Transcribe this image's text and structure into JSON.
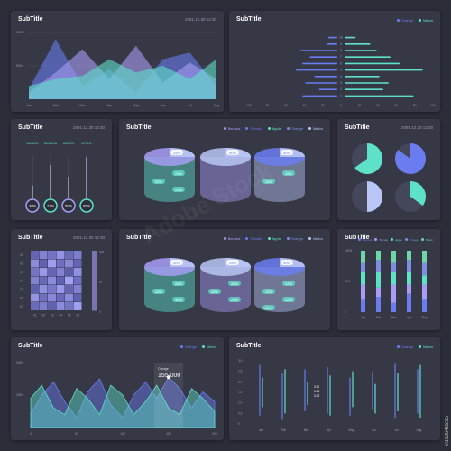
{
  "colors": {
    "bg": "#2a2c37",
    "card": "#363845",
    "teal": "#5ee1c9",
    "blue": "#6a7cf0",
    "purple": "#a79df5",
    "lightblue": "#b9c6f5",
    "grid": "#4a4d5c",
    "muted": "#9a9db0"
  },
  "panels": {
    "p1": {
      "title": "SubTitle",
      "date": "2091.12.30 12:30"
    },
    "p2": {
      "title": "SubTitle",
      "legend": [
        "Orange",
        "Melon"
      ]
    },
    "p3": {
      "title": "SubTitle",
      "date": "2091.12.30 12:30"
    },
    "p4": {
      "title": "SubTitle",
      "legend": [
        "Banana",
        "Tomato",
        "Apple",
        "Orange",
        "Melon"
      ]
    },
    "p5": {
      "title": "SubTitle",
      "date": "2091.12.30 12:30"
    },
    "p6": {
      "title": "SubTitle",
      "date": "2091.12.30 12:30"
    },
    "p7": {
      "title": "SubTitle",
      "legend": [
        "Banana",
        "Tomato",
        "Apple",
        "Orange",
        "Melon"
      ]
    },
    "p8": {
      "title": "SubTitle",
      "legend": [
        "Banana",
        "Tomato",
        "Apple",
        "Orange",
        "Melon"
      ]
    },
    "p9": {
      "title": "SubTitle",
      "legend": [
        "Orange",
        "Melon"
      ]
    },
    "p10": {
      "title": "SubTitle",
      "legend": [
        "Orange",
        "Melon"
      ]
    }
  },
  "chart_data": [
    {
      "type": "area",
      "title": "SubTitle",
      "categories": [
        "Jan",
        "Feb",
        "Mar",
        "Apr",
        "May",
        "Jun",
        "Jul",
        "Aug"
      ],
      "ytick_labels": [
        "100%",
        "50%"
      ],
      "ylim": [
        0,
        100
      ],
      "series": [
        {
          "color": "#6a7cf0",
          "values": [
            15,
            90,
            20,
            45,
            10,
            60,
            70,
            20
          ]
        },
        {
          "color": "#a79df5",
          "values": [
            10,
            40,
            75,
            30,
            80,
            25,
            55,
            30
          ]
        },
        {
          "color": "#5ee1c9",
          "values": [
            20,
            30,
            35,
            60,
            40,
            50,
            30,
            60
          ]
        }
      ]
    },
    {
      "type": "bar",
      "orientation": "horizontal",
      "title": "SubTitle",
      "categories": [
        "10",
        "9",
        "8",
        "7",
        "6",
        "5",
        "4",
        "3",
        "2",
        "1"
      ],
      "xtick_labels": [
        "100",
        "80",
        "60",
        "40",
        "20",
        "0",
        "20",
        "40",
        "60",
        "80",
        "100"
      ],
      "xlim": [
        -100,
        100
      ],
      "series": [
        {
          "name": "Orange",
          "values": [
            -10,
            -12,
            -40,
            -30,
            -38,
            -45,
            -25,
            -35,
            -20,
            -38
          ]
        },
        {
          "name": "Melon",
          "values": [
            12,
            28,
            35,
            50,
            60,
            85,
            38,
            48,
            42,
            75
          ]
        }
      ]
    },
    {
      "type": "bar",
      "title": "SubTitle",
      "categories": [
        "MANGO",
        "BANANA",
        "MELON",
        "APPLE"
      ],
      "values": [
        30,
        77,
        50,
        95
      ],
      "value_labels": [
        "30%",
        "77%",
        "50%",
        "95%"
      ],
      "ylim": [
        0,
        100
      ]
    },
    {
      "type": "pie",
      "title": "SubTitle",
      "legend": [
        "Banana",
        "Tomato",
        "Apple",
        "Orange",
        "Melon"
      ],
      "cylinders": [
        {
          "labels": [
            "25%",
            "25%",
            "25%",
            "25%"
          ]
        },
        {
          "labels": [
            "50%"
          ]
        },
        {
          "labels": [
            "50%",
            "25%",
            "25%"
          ]
        }
      ]
    },
    {
      "type": "pie",
      "title": "SubTitle",
      "pies": [
        {
          "fraction": 0.65,
          "color": "#5ee1c9"
        },
        {
          "fraction": 0.85,
          "color": "#6a7cf0"
        },
        {
          "fraction": 0.5,
          "color": "#b9c6f5"
        },
        {
          "fraction": 0.35,
          "color": "#5ee1c9"
        }
      ]
    },
    {
      "type": "heatmap",
      "title": "SubTitle",
      "rows": [
        "01",
        "02",
        "03",
        "04",
        "05",
        "06",
        "07"
      ],
      "cols": [
        "01",
        "02",
        "03",
        "04",
        "05",
        "06"
      ],
      "colorbar_labels": [
        "100",
        "50",
        "0"
      ],
      "values": [
        [
          30,
          60,
          45,
          80,
          35,
          55
        ],
        [
          70,
          25,
          90,
          40,
          65,
          30
        ],
        [
          45,
          85,
          30,
          60,
          20,
          75
        ],
        [
          60,
          35,
          70,
          25,
          95,
          40
        ],
        [
          25,
          75,
          50,
          85,
          30,
          60
        ],
        [
          80,
          40,
          65,
          35,
          70,
          25
        ],
        [
          35,
          55,
          25,
          70,
          45,
          90
        ]
      ]
    },
    {
      "type": "pie",
      "title": "SubTitle",
      "legend": [
        "Banana",
        "Tomato",
        "Apple",
        "Orange",
        "Melon"
      ],
      "cylinders": [
        {
          "labels": [
            "40%",
            "25%",
            "25%",
            "35%"
          ]
        },
        {
          "labels": [
            "25%",
            "25%",
            "25%",
            "25%"
          ]
        },
        {
          "labels": [
            "40%",
            "12%",
            "12%",
            "12%",
            "25%"
          ]
        }
      ]
    },
    {
      "type": "bar",
      "stacked": true,
      "title": "SubTitle",
      "legend": [
        "Banana",
        "Tomato",
        "Apple",
        "Orange",
        "Melon"
      ],
      "categories": [
        "Jan",
        "Feb",
        "Mar",
        "Apr",
        "May"
      ],
      "ytick_labels": [
        "100%",
        "50%",
        "0"
      ],
      "ylim": [
        0,
        100
      ],
      "series": [
        {
          "name": "Banana",
          "color": "#6a7cf0",
          "values": [
            20,
            25,
            15,
            30,
            20
          ]
        },
        {
          "name": "Tomato",
          "color": "#a79df5",
          "values": [
            25,
            15,
            30,
            15,
            25
          ]
        },
        {
          "name": "Apple",
          "color": "#5ee1c9",
          "values": [
            20,
            25,
            20,
            20,
            15
          ]
        },
        {
          "name": "Orange",
          "color": "#7b8ee0",
          "values": [
            15,
            20,
            15,
            20,
            20
          ]
        },
        {
          "name": "Melon",
          "color": "#6fd6a8",
          "values": [
            20,
            15,
            20,
            15,
            20
          ]
        }
      ]
    },
    {
      "type": "area",
      "title": "SubTitle",
      "legend": [
        "Orange",
        "Melon"
      ],
      "xtick_labels": [
        "0",
        "50",
        "100",
        "150",
        "200"
      ],
      "xlim": [
        0,
        200
      ],
      "ytick_labels": [
        "200K",
        "100K"
      ],
      "ylim": [
        0,
        200000
      ],
      "callout": {
        "label": "Orange",
        "value": "155,000",
        "x": 150
      },
      "series": [
        {
          "name": "Orange",
          "x": [
            0,
            12,
            25,
            37,
            50,
            62,
            75,
            87,
            100,
            112,
            125,
            137,
            150,
            162,
            175,
            187,
            200
          ],
          "values": [
            40000,
            100000,
            140000,
            80000,
            30000,
            110000,
            150000,
            70000,
            30000,
            100000,
            140000,
            90000,
            155000,
            120000,
            60000,
            110000,
            80000
          ]
        },
        {
          "name": "Melon",
          "x": [
            0,
            12,
            25,
            37,
            50,
            62,
            75,
            87,
            100,
            112,
            125,
            137,
            150,
            162,
            175,
            187,
            200
          ],
          "values": [
            90000,
            130000,
            60000,
            40000,
            120000,
            90000,
            40000,
            130000,
            100000,
            40000,
            80000,
            130000,
            60000,
            40000,
            120000,
            90000,
            50000
          ]
        }
      ]
    },
    {
      "type": "bar",
      "title": "SubTitle",
      "legend": [
        "Orange",
        "Melon"
      ],
      "categories": [
        "Jan",
        "Feb",
        "Mar",
        "Apr",
        "May",
        "Jun",
        "Jul",
        "Aug"
      ],
      "ytick_labels": [
        "3.0",
        "2.5",
        "2.0",
        "1.5",
        "1.0",
        "0.5",
        "0"
      ],
      "ylim": [
        0,
        3
      ],
      "value_labels": [
        "3.30",
        "3.14",
        "3.22"
      ],
      "series": [
        {
          "name": "Orange",
          "low": [
            0.4,
            0.2,
            0.6,
            0.5,
            0.4,
            0.7,
            0.3,
            0.5
          ],
          "high": [
            2.8,
            2.4,
            2.6,
            2.7,
            2.2,
            2.5,
            2.9,
            2.6
          ]
        },
        {
          "name": "Melon",
          "low": [
            0.8,
            0.5,
            0.9,
            0.4,
            0.8,
            0.5,
            0.6,
            0.3
          ],
          "high": [
            2.2,
            2.6,
            2.0,
            2.3,
            2.5,
            1.9,
            2.4,
            2.8
          ]
        }
      ]
    }
  ],
  "watermark": "Adobe Stock",
  "stock_id": "#313648295"
}
